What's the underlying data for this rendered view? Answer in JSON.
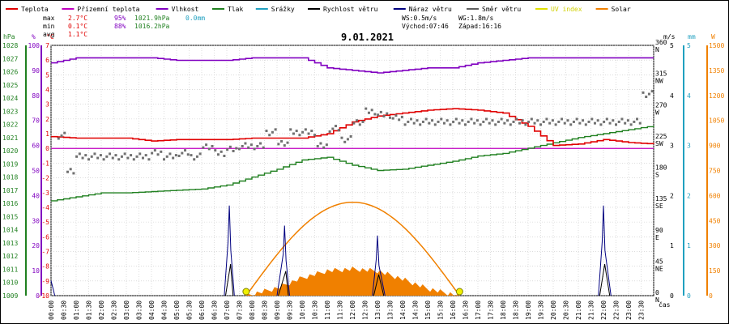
{
  "chart_data": {
    "type": "line",
    "title": "9.01.2021",
    "legend": [
      {
        "label": "Teplota",
        "color": "#e00000"
      },
      {
        "label": "Přízemní teplota",
        "color": "#c000c0"
      },
      {
        "label": "Vlhkost",
        "color": "#8000c0"
      },
      {
        "label": "Tlak",
        "color": "#208020"
      },
      {
        "label": "Srážky",
        "color": "#20a0c0"
      },
      {
        "label": "Rychlost větru",
        "color": "#000000"
      },
      {
        "label": "Náraz větru",
        "color": "#000080"
      },
      {
        "label": "Směr větru",
        "color": "#606060"
      },
      {
        "label": "UV index",
        "color": "#e0e000"
      },
      {
        "label": "Solar",
        "color": "#f08000"
      }
    ],
    "stats": {
      "max_label": "max",
      "max_temp": "2.7°C",
      "max_hum": "95%",
      "max_press": "1021.9hPa",
      "max_rain": "0.0mm",
      "min_label": "min",
      "min_temp": "0.1°C",
      "min_hum": "88%",
      "min_press": "1016.2hPa",
      "avg_label": "avg",
      "avg_temp": "1.1°C",
      "ws": "WS:0.5m/s",
      "wg": "WG:1.8m/s",
      "sunrise": "Východ:07:46",
      "sunset": "Západ:16:16"
    },
    "axes": {
      "hpa_unit": "hPa",
      "pct_unit": "%",
      "temp_unit": "°C",
      "ms_unit": "m/s",
      "mm_unit": "mm",
      "w_unit": "W",
      "x_label": "čas",
      "pressure_ticks": [
        1009,
        1010,
        1011,
        1012,
        1013,
        1014,
        1015,
        1016,
        1017,
        1018,
        1019,
        1020,
        1021,
        1022,
        1023,
        1024,
        1025,
        1026,
        1027,
        1028
      ],
      "humidity_ticks": [
        0,
        10,
        20,
        30,
        40,
        50,
        60,
        70,
        80,
        90,
        100
      ],
      "temp_ticks": [
        -10,
        -9,
        -8,
        -7,
        -6,
        -5,
        -4,
        -3,
        -2,
        -1,
        0,
        1,
        2,
        3,
        4,
        5,
        6,
        7
      ],
      "dir_ticks": [
        {
          "deg": 0,
          "label": "0",
          "dir": "N"
        },
        {
          "deg": 45,
          "label": "45",
          "dir": "NE"
        },
        {
          "deg": 90,
          "label": "90",
          "dir": "E"
        },
        {
          "deg": 135,
          "label": "135",
          "dir": "SE"
        },
        {
          "deg": 180,
          "label": "180",
          "dir": "S"
        },
        {
          "deg": 225,
          "label": "225",
          "dir": "SW"
        },
        {
          "deg": 270,
          "label": "270",
          "dir": "W"
        },
        {
          "deg": 315,
          "label": "315",
          "dir": "NW"
        },
        {
          "deg": 360,
          "label": "360",
          "dir": "N"
        }
      ],
      "wind_ticks": [
        0,
        1,
        2,
        3,
        4,
        5
      ],
      "rain_ticks": [
        0,
        1,
        2,
        3,
        4,
        5
      ],
      "solar_ticks": [
        0,
        150,
        300,
        450,
        600,
        750,
        900,
        1050,
        1200,
        1350,
        1500
      ],
      "time_labels": [
        "00:00",
        "00:30",
        "01:00",
        "01:30",
        "02:00",
        "02:30",
        "03:00",
        "03:30",
        "04:00",
        "04:30",
        "05:00",
        "05:30",
        "06:00",
        "06:30",
        "07:00",
        "07:30",
        "08:00",
        "08:30",
        "09:00",
        "09:30",
        "10:00",
        "10:30",
        "11:00",
        "11:30",
        "12:00",
        "12:30",
        "13:00",
        "13:30",
        "14:00",
        "14:30",
        "15:00",
        "15:30",
        "16:00",
        "16:30",
        "17:00",
        "17:30",
        "18:00",
        "18:30",
        "19:00",
        "19:30",
        "20:00",
        "20:30",
        "21:00",
        "21:30",
        "22:00",
        "22:30",
        "23:00",
        "23:30"
      ]
    },
    "series": [
      {
        "name": "Teplota",
        "unit": "°C",
        "x": [
          0,
          1,
          2,
          3,
          4,
          5,
          6,
          7,
          8,
          9,
          10,
          11,
          12,
          13,
          14,
          15,
          16,
          17,
          18,
          19,
          20,
          21,
          22,
          23,
          24
        ],
        "values": [
          0.8,
          0.7,
          0.7,
          0.7,
          0.5,
          0.6,
          0.6,
          0.6,
          0.7,
          0.7,
          0.7,
          1.0,
          1.8,
          2.2,
          2.4,
          2.6,
          2.7,
          2.6,
          2.4,
          1.5,
          0.2,
          0.3,
          0.6,
          0.4,
          0.3
        ]
      },
      {
        "name": "Přízemní teplota",
        "unit": "°C",
        "x": [
          0,
          24
        ],
        "values": [
          0.0,
          0.0
        ]
      },
      {
        "name": "Vlhkost",
        "unit": "%",
        "x": [
          0,
          1,
          2,
          3,
          4,
          5,
          6,
          7,
          8,
          9,
          10,
          11,
          12,
          13,
          14,
          15,
          16,
          17,
          18,
          19,
          20,
          21,
          22,
          23,
          24
        ],
        "values": [
          93,
          95,
          95,
          95,
          95,
          94,
          94,
          94,
          95,
          95,
          95,
          91,
          90,
          89,
          90,
          91,
          91,
          93,
          94,
          95,
          95,
          95,
          95,
          95,
          95
        ]
      },
      {
        "name": "Tlak",
        "unit": "hPa",
        "x": [
          0,
          1,
          2,
          3,
          4,
          5,
          6,
          7,
          8,
          9,
          10,
          11,
          12,
          13,
          14,
          15,
          16,
          17,
          18,
          19,
          20,
          21,
          22,
          23,
          24
        ],
        "values": [
          1016.2,
          1016.5,
          1016.8,
          1016.8,
          1016.9,
          1017.0,
          1017.1,
          1017.4,
          1018.0,
          1018.6,
          1019.3,
          1019.5,
          1018.9,
          1018.5,
          1018.6,
          1018.9,
          1019.2,
          1019.6,
          1019.8,
          1020.2,
          1020.6,
          1021.0,
          1021.3,
          1021.6,
          1021.9
        ]
      },
      {
        "name": "Směr větru",
        "unit": "°",
        "x": [
          0.3,
          0.6,
          1,
          1.5,
          2,
          2.5,
          3,
          3.5,
          4,
          4.5,
          5,
          5.5,
          6,
          6.5,
          7,
          7.5,
          8,
          8.5,
          9,
          9.5,
          10,
          10.5,
          11,
          11.5,
          12,
          12.5,
          13,
          13.5,
          14,
          15,
          16,
          17,
          18,
          19,
          20,
          21,
          22,
          23,
          23.5,
          24
        ],
        "values": [
          230,
          180,
          200,
          200,
          200,
          200,
          200,
          200,
          205,
          200,
          205,
          200,
          215,
          205,
          210,
          215,
          215,
          235,
          220,
          235,
          235,
          215,
          240,
          225,
          250,
          265,
          260,
          255,
          250,
          250,
          250,
          250,
          250,
          250,
          250,
          250,
          250,
          250,
          290,
          290
        ]
      },
      {
        "name": "Náraz větru",
        "unit": "m/s",
        "x": [
          0,
          6.9,
          7.1,
          7.3,
          9.0,
          9.3,
          9.5,
          12.8,
          13.0,
          13.3,
          21.8,
          22.0,
          22.3
        ],
        "values": [
          0.3,
          0,
          1.8,
          0,
          0,
          1.4,
          0,
          0,
          1.2,
          0,
          0,
          1.8,
          0
        ]
      },
      {
        "name": "Solar",
        "unit": "W",
        "x": [
          7.8,
          9,
          10,
          11,
          12,
          13,
          14,
          15,
          16.2
        ],
        "values": [
          0,
          120,
          280,
          390,
          420,
          390,
          260,
          110,
          0
        ]
      }
    ],
    "ylim_temp": [
      -10,
      7
    ],
    "ylim_hum": [
      0,
      100
    ],
    "ylim_press": [
      1009,
      1028
    ],
    "ylim_wind": [
      0,
      5
    ],
    "ylim_solar": [
      0,
      1500
    ]
  }
}
